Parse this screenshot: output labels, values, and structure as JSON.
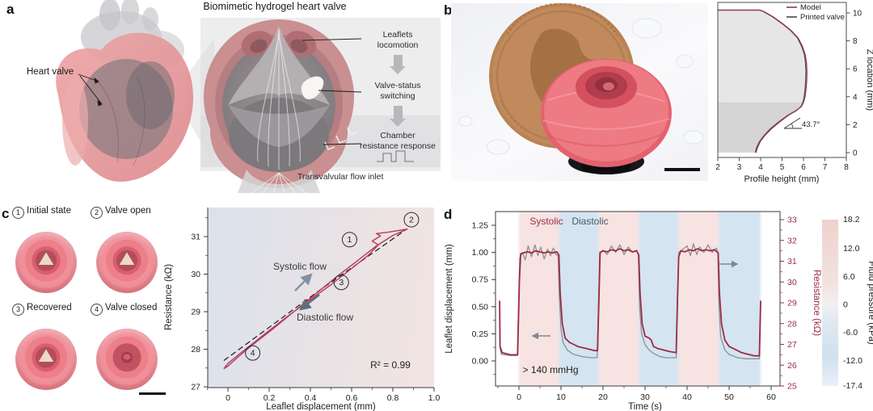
{
  "panel_a": {
    "label": "a",
    "title": "Biomimetic hydrogel heart valve",
    "heart_callout": "Heart valve",
    "steps": [
      "Leaflets\nlocomotion",
      "Valve-status\nswitching",
      "Chamber\nresistance response"
    ],
    "inlet_label": "Transvalvular flow inlet"
  },
  "panel_b": {
    "label": "b"
  },
  "panel_c": {
    "label": "c",
    "states": [
      {
        "num": "1",
        "label": "Initial state"
      },
      {
        "num": "2",
        "label": "Valve open"
      },
      {
        "num": "3",
        "label": "Recovered"
      },
      {
        "num": "4",
        "label": "Valve closed"
      }
    ]
  },
  "panel_d": {
    "label": "d"
  },
  "chart_data": [
    {
      "id": "valve-profile",
      "type": "line",
      "xlabel": "Profile height (mm)",
      "ylabel": "Z location (mm)",
      "xlim": [
        2,
        8
      ],
      "ylim": [
        0,
        10.8
      ],
      "xticks": [
        2,
        3,
        4,
        5,
        6,
        7,
        8
      ],
      "yticks": [
        0,
        2,
        4,
        6,
        8,
        10
      ],
      "legend_position": "top-right",
      "grid": false,
      "annotation": "43.7°",
      "fill_to_x": 2,
      "shade_split_z": 3.6,
      "series": [
        {
          "name": "Model",
          "color": "#8e3b44",
          "points": [
            [
              3.75,
              0
            ],
            [
              3.82,
              0.4
            ],
            [
              3.95,
              0.8
            ],
            [
              4.15,
              1.2
            ],
            [
              4.45,
              1.7
            ],
            [
              4.85,
              2.2
            ],
            [
              5.3,
              2.7
            ],
            [
              5.65,
              3.0
            ],
            [
              5.9,
              3.3
            ],
            [
              6.0,
              3.6
            ],
            [
              6.07,
              4.0
            ],
            [
              6.12,
              4.6
            ],
            [
              6.15,
              5.2
            ],
            [
              6.16,
              5.8
            ],
            [
              6.14,
              6.4
            ],
            [
              6.08,
              7.0
            ],
            [
              5.95,
              7.6
            ],
            [
              5.75,
              8.2
            ],
            [
              5.45,
              8.7
            ],
            [
              5.05,
              9.2
            ],
            [
              4.6,
              9.7
            ],
            [
              4.15,
              10.1
            ],
            [
              3.95,
              10.2
            ]
          ]
        },
        {
          "name": "Printed valve",
          "color": "#4a4a4a",
          "points": [
            [
              3.78,
              0
            ],
            [
              3.87,
              0.4
            ],
            [
              3.99,
              0.8
            ],
            [
              4.19,
              1.2
            ],
            [
              4.5,
              1.7
            ],
            [
              4.9,
              2.2
            ],
            [
              5.33,
              2.7
            ],
            [
              5.67,
              3.0
            ],
            [
              5.88,
              3.3
            ],
            [
              5.97,
              3.6
            ],
            [
              6.03,
              4.0
            ],
            [
              6.07,
              4.6
            ],
            [
              6.1,
              5.2
            ],
            [
              6.11,
              5.8
            ],
            [
              6.09,
              6.4
            ],
            [
              6.04,
              7.0
            ],
            [
              5.91,
              7.6
            ],
            [
              5.72,
              8.2
            ],
            [
              5.42,
              8.7
            ],
            [
              5.02,
              9.2
            ],
            [
              4.57,
              9.7
            ],
            [
              4.12,
              10.1
            ],
            [
              3.92,
              10.2
            ]
          ]
        }
      ]
    },
    {
      "id": "resistance-vs-displacement",
      "type": "line",
      "xlabel": "Leaflet displacement (mm)",
      "ylabel": "Resistance (kΩ)",
      "xlim": [
        -0.1,
        1.0
      ],
      "ylim": [
        27,
        31.8
      ],
      "xticks": [
        0,
        0.2,
        0.4,
        0.6,
        0.8,
        1.0
      ],
      "yticks": [
        27,
        28,
        29,
        30,
        31
      ],
      "r_squared": "R² = 0.99",
      "flow_labels": {
        "up": "Systolic flow",
        "down": "Diastolic flow"
      },
      "state_markers": [
        {
          "n": "1",
          "x": 0.59,
          "y": 30.92
        },
        {
          "n": "2",
          "x": 0.89,
          "y": 31.45
        },
        {
          "n": "3",
          "x": 0.55,
          "y": 29.78
        },
        {
          "n": "4",
          "x": 0.12,
          "y": 27.9
        }
      ],
      "colors": {
        "loop": "#b63a62",
        "fit": "#1a1a1a",
        "arrow_up": "#8292a2",
        "arrow_down": "#5f6d79"
      },
      "loop": [
        [
          -0.02,
          27.48
        ],
        [
          0.0,
          27.62
        ],
        [
          0.05,
          27.85
        ],
        [
          0.12,
          28.15
        ],
        [
          0.2,
          28.5
        ],
        [
          0.3,
          28.92
        ],
        [
          0.4,
          29.32
        ],
        [
          0.5,
          29.72
        ],
        [
          0.6,
          30.15
        ],
        [
          0.68,
          30.5
        ],
        [
          0.73,
          30.78
        ],
        [
          0.7,
          30.88
        ],
        [
          0.74,
          31.02
        ],
        [
          0.72,
          31.08
        ],
        [
          0.78,
          31.12
        ],
        [
          0.87,
          31.2
        ],
        [
          0.8,
          31.03
        ],
        [
          0.72,
          30.75
        ],
        [
          0.62,
          30.32
        ],
        [
          0.52,
          29.9
        ],
        [
          0.42,
          29.45
        ],
        [
          0.32,
          29.0
        ],
        [
          0.22,
          28.55
        ],
        [
          0.12,
          28.12
        ],
        [
          0.05,
          27.8
        ],
        [
          0.0,
          27.55
        ],
        [
          -0.02,
          27.48
        ]
      ],
      "fit_line": [
        [
          -0.02,
          27.7
        ],
        [
          0.44,
          29.55
        ],
        [
          0.86,
          31.17
        ]
      ]
    },
    {
      "id": "valve-cycling",
      "type": "line",
      "xlabel": "Time (s)",
      "ylabel_left": "Leaflet displacement (mm)",
      "ylabel_right": "Resistance (kΩ)",
      "colorbar_label": "Fluid pressure (kPa)",
      "xlim": [
        -5.5,
        62
      ],
      "xticks": [
        0,
        10,
        20,
        30,
        40,
        50,
        60
      ],
      "ylim_left": [
        -0.23,
        1.37
      ],
      "yticks_left": [
        "0.00",
        "0.25",
        "0.50",
        "0.75",
        "1.00",
        "1.25"
      ],
      "ylim_right": [
        25,
        33
      ],
      "yticks_right": [
        25,
        26,
        27,
        28,
        29,
        30,
        31,
        32,
        33
      ],
      "colorbar_ticks": [
        "18.2",
        "12.0",
        "6.0",
        "0",
        "-6.0",
        "-12.0",
        "-17.4"
      ],
      "phase_labels": {
        "systolic": "Systolic",
        "diastolic": "Diastolic"
      },
      "pressure_note": "> 140 mmHg",
      "colors": {
        "systolic_band": "#f6e3e2",
        "diastolic_band": "#d5e4f1",
        "displacement": "#8d9093",
        "resistance": "#9c2b47",
        "right_axis": "#9c2b47"
      },
      "bands": {
        "systolic": [
          [
            0,
            9.5
          ],
          [
            19,
            28.5
          ],
          [
            38,
            47.5
          ]
        ],
        "diastolic": [
          [
            9.5,
            19
          ],
          [
            28.5,
            38
          ],
          [
            47.5,
            57.5
          ]
        ]
      },
      "series": [
        {
          "name": "displacement",
          "axis": "left",
          "points": [
            [
              -4.6,
              0.42
            ],
            [
              -4.5,
              0.12
            ],
            [
              -4.2,
              0.06
            ],
            [
              -2,
              0.05
            ],
            [
              -0.4,
              0.05
            ],
            [
              -0.1,
              0.5
            ],
            [
              0.2,
              0.95
            ],
            [
              0.8,
              1.0
            ],
            [
              1.5,
              0.93
            ],
            [
              2.2,
              1.06
            ],
            [
              3,
              0.96
            ],
            [
              3.8,
              1.07
            ],
            [
              4.5,
              0.97
            ],
            [
              5.2,
              1.05
            ],
            [
              6,
              0.94
            ],
            [
              6.8,
              1.03
            ],
            [
              7.5,
              0.97
            ],
            [
              8.2,
              1.04
            ],
            [
              8.8,
              0.98
            ],
            [
              9.3,
              0.97
            ],
            [
              9.6,
              0.6
            ],
            [
              10,
              0.3
            ],
            [
              10.5,
              0.17
            ],
            [
              11.5,
              0.1
            ],
            [
              13,
              0.06
            ],
            [
              15,
              0.04
            ],
            [
              17,
              0.03
            ],
            [
              18.6,
              0.03
            ],
            [
              18.9,
              0.5
            ],
            [
              19.2,
              1.0
            ],
            [
              20,
              1.02
            ],
            [
              21,
              0.98
            ],
            [
              22,
              1.06
            ],
            [
              23,
              1.0
            ],
            [
              24,
              1.07
            ],
            [
              25,
              0.98
            ],
            [
              26,
              1.05
            ],
            [
              27,
              1.0
            ],
            [
              28,
              1.02
            ],
            [
              28.4,
              0.98
            ],
            [
              28.7,
              0.5
            ],
            [
              29.2,
              0.25
            ],
            [
              30,
              0.15
            ],
            [
              31,
              0.1
            ],
            [
              32,
              0.07
            ],
            [
              33.5,
              0.04
            ],
            [
              35,
              0.03
            ],
            [
              37.4,
              0.03
            ],
            [
              37.7,
              0.5
            ],
            [
              38,
              1.0
            ],
            [
              39,
              1.03
            ],
            [
              40,
              1.06
            ],
            [
              40.8,
              0.97
            ],
            [
              41.5,
              1.08
            ],
            [
              42.3,
              0.98
            ],
            [
              43,
              1.05
            ],
            [
              44,
              1.0
            ],
            [
              45,
              1.07
            ],
            [
              46,
              1.0
            ],
            [
              47,
              1.04
            ],
            [
              47.3,
              1.0
            ],
            [
              47.6,
              0.5
            ],
            [
              48,
              0.22
            ],
            [
              49,
              0.1
            ],
            [
              50,
              0.06
            ],
            [
              52,
              0.03
            ],
            [
              54,
              0.02
            ],
            [
              56,
              0.02
            ],
            [
              57.2,
              0.02
            ],
            [
              57.5,
              0.5
            ]
          ]
        },
        {
          "name": "resistance",
          "axis": "right",
          "points": [
            [
              -4.6,
              29.1
            ],
            [
              -4.5,
              26.9
            ],
            [
              -4,
              26.6
            ],
            [
              -2,
              26.5
            ],
            [
              -0.3,
              26.5
            ],
            [
              0.1,
              30
            ],
            [
              0.4,
              31.35
            ],
            [
              1,
              31.4
            ],
            [
              2,
              31.45
            ],
            [
              3,
              31.4
            ],
            [
              4,
              31.5
            ],
            [
              5,
              31.45
            ],
            [
              6,
              31.4
            ],
            [
              7,
              31.45
            ],
            [
              8,
              31.4
            ],
            [
              9,
              31.45
            ],
            [
              9.5,
              31.3
            ],
            [
              9.8,
              29.5
            ],
            [
              10.3,
              28
            ],
            [
              11,
              27.3
            ],
            [
              12,
              27.1
            ],
            [
              13,
              27
            ],
            [
              14,
              26.9
            ],
            [
              15,
              26.85
            ],
            [
              16,
              26.8
            ],
            [
              17,
              26.75
            ],
            [
              18,
              26.7
            ],
            [
              18.7,
              26.7
            ],
            [
              19,
              29
            ],
            [
              19.3,
              31.4
            ],
            [
              20,
              31.5
            ],
            [
              21,
              31.45
            ],
            [
              22,
              31.55
            ],
            [
              23,
              31.5
            ],
            [
              24,
              31.6
            ],
            [
              25,
              31.5
            ],
            [
              26,
              31.55
            ],
            [
              27,
              31.45
            ],
            [
              28,
              31.5
            ],
            [
              28.5,
              31.3
            ],
            [
              28.8,
              29.5
            ],
            [
              29.3,
              28
            ],
            [
              30,
              27.4
            ],
            [
              31,
              27.3
            ],
            [
              31.5,
              27.2
            ],
            [
              32,
              26.9
            ],
            [
              33,
              26.8
            ],
            [
              34,
              26.75
            ],
            [
              35,
              26.7
            ],
            [
              36,
              26.65
            ],
            [
              37.4,
              26.6
            ],
            [
              37.7,
              29
            ],
            [
              38,
              31.2
            ],
            [
              38.5,
              31.5
            ],
            [
              39.5,
              31.45
            ],
            [
              40.5,
              31.55
            ],
            [
              41.5,
              31.5
            ],
            [
              42.5,
              31.6
            ],
            [
              43.5,
              31.5
            ],
            [
              44.5,
              31.55
            ],
            [
              45.5,
              31.5
            ],
            [
              46.5,
              31.55
            ],
            [
              47.4,
              31.4
            ],
            [
              47.7,
              29.5
            ],
            [
              48.2,
              28
            ],
            [
              49,
              27.2
            ],
            [
              50,
              26.9
            ],
            [
              51,
              26.8
            ],
            [
              52,
              26.7
            ],
            [
              53,
              26.6
            ],
            [
              54,
              26.55
            ],
            [
              55,
              26.5
            ],
            [
              56,
              26.45
            ],
            [
              57.2,
              26.45
            ],
            [
              57.5,
              29.1
            ]
          ]
        }
      ]
    }
  ]
}
